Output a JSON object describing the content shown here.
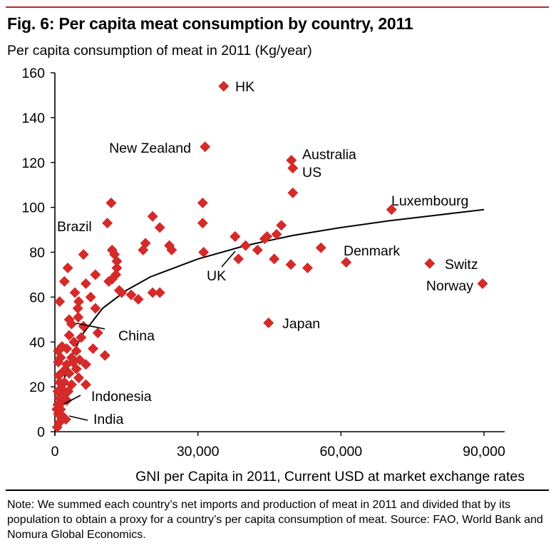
{
  "header": {
    "title": "Fig. 6: Per capita meat consumption by country, 2011",
    "subtitle": "Per capita consumption of meat in 2011 (Kg/year)"
  },
  "footer": {
    "note": "Note: We summed each country’s net imports and production of meat in 2011 and divided that by its population to obtain a proxy for a country’s per capita consumption of meat. Source: FAO, World Bank and Nomura Global Economics."
  },
  "colors": {
    "marker": "#d42a2a",
    "top_rule": "#b22b2b",
    "trend": "#000000"
  },
  "chart_data": {
    "type": "scatter",
    "title": "Fig. 6: Per capita meat consumption by country, 2011",
    "ylabel": "Per capita consumption of meat in 2011 (Kg/year)",
    "xlabel": "GNI per Capita in 2011, Current USD at market exchange rates",
    "xlim": [
      0,
      95000
    ],
    "ylim": [
      0,
      160
    ],
    "xticks": [
      0,
      30000,
      60000,
      90000
    ],
    "xtick_labels": [
      "0",
      "30,000",
      "60,000",
      "90,000"
    ],
    "yticks": [
      0,
      20,
      40,
      60,
      80,
      100,
      120,
      140,
      160
    ],
    "ytick_labels": [
      "0",
      "20",
      "40",
      "60",
      "80",
      "100",
      "120",
      "140",
      "160"
    ],
    "grid": false,
    "marker": "diamond",
    "trendline": {
      "type": "logarithmic",
      "description": "log fit of consumption vs GNI per capita",
      "points": [
        [
          500,
          2
        ],
        [
          1000,
          12
        ],
        [
          2000,
          24
        ],
        [
          4000,
          36
        ],
        [
          6000,
          44
        ],
        [
          10000,
          55
        ],
        [
          15000,
          63
        ],
        [
          20000,
          69
        ],
        [
          30000,
          77
        ],
        [
          40000,
          83
        ],
        [
          50000,
          87.5
        ],
        [
          60000,
          91
        ],
        [
          70000,
          94
        ],
        [
          80000,
          96.5
        ],
        [
          90000,
          99
        ]
      ]
    },
    "labeled_points": [
      {
        "label": "HK",
        "x": 35400,
        "y": 154
      },
      {
        "label": "New Zealand",
        "x": 31500,
        "y": 127
      },
      {
        "label": "Australia",
        "x": 49600,
        "y": 121
      },
      {
        "label": "US",
        "x": 49900,
        "y": 117.5
      },
      {
        "label": "Luxembourg",
        "x": 70600,
        "y": 99
      },
      {
        "label": "Brazil",
        "x": 11000,
        "y": 93
      },
      {
        "label": "Denmark",
        "x": 61100,
        "y": 75.5
      },
      {
        "label": "Switz",
        "x": 78600,
        "y": 75
      },
      {
        "label": "Norway",
        "x": 89700,
        "y": 66
      },
      {
        "label": "UK",
        "x": 37800,
        "y": 87
      },
      {
        "label": "Japan",
        "x": 44800,
        "y": 48.5
      },
      {
        "label": "China",
        "x": 4900,
        "y": 51
      },
      {
        "label": "Indonesia",
        "x": 1400,
        "y": 13
      },
      {
        "label": "India",
        "x": 1400,
        "y": 6
      }
    ],
    "points": [
      [
        49900,
        106.5
      ],
      [
        31000,
        102
      ],
      [
        11800,
        102
      ],
      [
        20500,
        96
      ],
      [
        31000,
        93
      ],
      [
        22000,
        91
      ],
      [
        19000,
        84
      ],
      [
        18500,
        81
      ],
      [
        24000,
        83
      ],
      [
        24500,
        81
      ],
      [
        31200,
        80
      ],
      [
        12000,
        81
      ],
      [
        12500,
        79
      ],
      [
        13000,
        76
      ],
      [
        13000,
        73
      ],
      [
        12800,
        70
      ],
      [
        12000,
        68
      ],
      [
        11300,
        67
      ],
      [
        14000,
        62
      ],
      [
        16000,
        61
      ],
      [
        17500,
        59
      ],
      [
        20500,
        62
      ],
      [
        22000,
        62
      ],
      [
        13500,
        63
      ],
      [
        37800,
        87
      ],
      [
        40000,
        83
      ],
      [
        42500,
        81
      ],
      [
        44500,
        87
      ],
      [
        46500,
        88
      ],
      [
        47500,
        92
      ],
      [
        44000,
        86
      ],
      [
        46000,
        77
      ],
      [
        49500,
        74.5
      ],
      [
        53000,
        73
      ],
      [
        55800,
        82
      ],
      [
        38500,
        77
      ],
      [
        6000,
        79
      ],
      [
        8500,
        70
      ],
      [
        2700,
        73
      ],
      [
        2000,
        67
      ],
      [
        6500,
        66
      ],
      [
        4200,
        62
      ],
      [
        1000,
        58
      ],
      [
        7500,
        60
      ],
      [
        5000,
        58
      ],
      [
        4800,
        55
      ],
      [
        8500,
        55
      ],
      [
        3000,
        50
      ],
      [
        3500,
        48
      ],
      [
        6000,
        47
      ],
      [
        9000,
        44
      ],
      [
        10500,
        34
      ],
      [
        8000,
        37
      ],
      [
        4500,
        36
      ],
      [
        3500,
        33
      ],
      [
        2500,
        30
      ],
      [
        4500,
        28
      ],
      [
        6500,
        30
      ],
      [
        3000,
        26
      ],
      [
        1500,
        38
      ],
      [
        700,
        36
      ],
      [
        1200,
        33
      ],
      [
        2500,
        37
      ],
      [
        4000,
        40
      ],
      [
        5500,
        42
      ],
      [
        3000,
        43
      ],
      [
        2000,
        22
      ],
      [
        3500,
        21
      ],
      [
        6500,
        21
      ],
      [
        5000,
        24
      ],
      [
        1500,
        19
      ],
      [
        800,
        25
      ],
      [
        600,
        18
      ],
      [
        900,
        15
      ],
      [
        1500,
        16
      ],
      [
        2500,
        14
      ],
      [
        1200,
        10
      ],
      [
        700,
        8
      ],
      [
        1600,
        7
      ],
      [
        2300,
        5.5
      ],
      [
        900,
        4
      ],
      [
        500,
        2
      ],
      [
        600,
        12
      ],
      [
        1800,
        27
      ],
      [
        2800,
        18
      ],
      [
        3800,
        31
      ],
      [
        5200,
        32
      ],
      [
        700,
        31
      ],
      [
        1000,
        22
      ],
      [
        400,
        10
      ]
    ]
  }
}
